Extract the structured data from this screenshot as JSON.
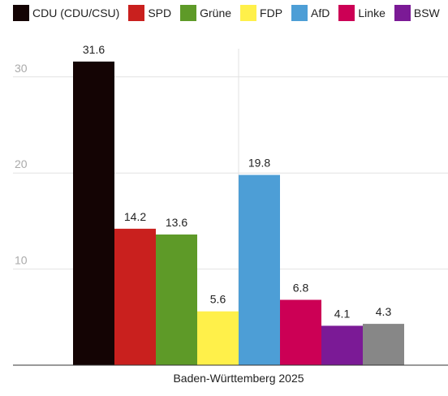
{
  "chart_data": {
    "type": "bar",
    "categories": [
      "Baden-Württemberg 2025"
    ],
    "series": [
      {
        "name": "CDU (CDU/CSU)",
        "color": "#140404",
        "values": [
          31.6
        ]
      },
      {
        "name": "SPD",
        "color": "#c9201e",
        "values": [
          14.2
        ]
      },
      {
        "name": "Grüne",
        "color": "#5e9a28",
        "values": [
          13.6
        ]
      },
      {
        "name": "FDP",
        "color": "#fff04a",
        "values": [
          5.6
        ]
      },
      {
        "name": "AfD",
        "color": "#4d9ed6",
        "values": [
          19.8
        ]
      },
      {
        "name": "Linke",
        "color": "#cc0055",
        "values": [
          6.8
        ]
      },
      {
        "name": "BSW",
        "color": "#7b1a96",
        "values": [
          4.1
        ]
      },
      {
        "name": "",
        "color": "#878787",
        "values": [
          4.3
        ]
      }
    ],
    "yticks": [
      10,
      20,
      30
    ],
    "ylim": [
      0,
      31.6
    ],
    "grid": true,
    "legend": "top",
    "title": "",
    "xlabel": "",
    "ylabel": ""
  }
}
